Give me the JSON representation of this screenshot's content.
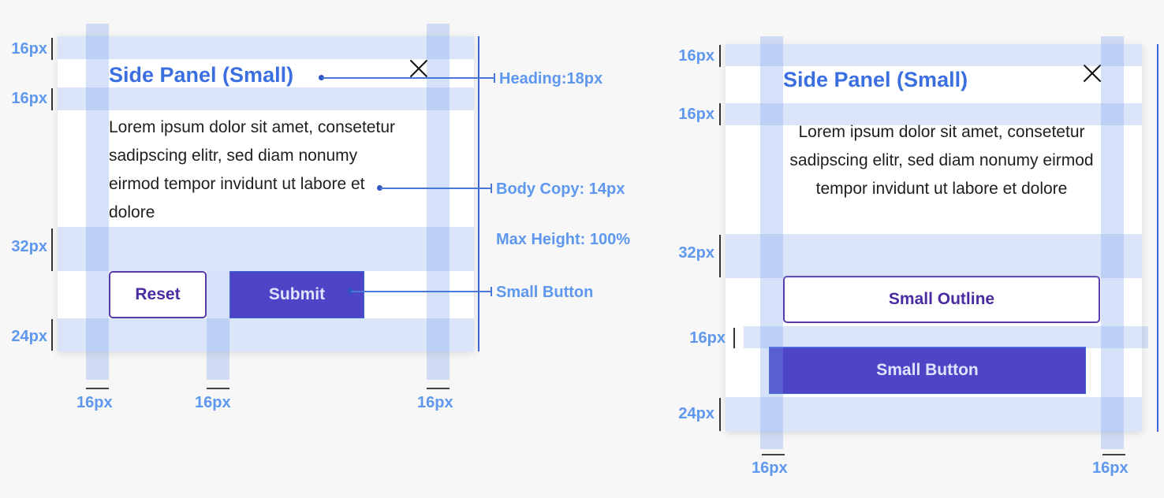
{
  "left_panel": {
    "title": "Side Panel (Small)",
    "body": "Lorem ipsum dolor sit amet, consetetur sadipscing elitr, sed diam nonumy eirmod tempor invidunt ut labore et dolore",
    "reset_label": "Reset",
    "submit_label": "Submit"
  },
  "right_panel": {
    "title": "Side Panel (Small)",
    "body": "Lorem ipsum dolor sit amet, consetetur sadipscing elitr, sed diam nonumy eirmod tempor invidunt ut labore et dolore",
    "outline_label": "Small Outline",
    "button_label": "Small Button"
  },
  "annotations": {
    "heading": "Heading:18px",
    "body_copy": "Body Copy: 14px",
    "max_height": "Max Height: 100%",
    "small_button": "Small Button"
  },
  "spacing": {
    "s16": "16px",
    "s32": "32px",
    "s24": "24px"
  },
  "icons": [
    "close-icon"
  ],
  "colors": {
    "accent_blue": "#3b6fe0",
    "button_purple": "#4e44c6",
    "outline_purple": "#5a3aa6",
    "band_blue": "#749be8"
  }
}
